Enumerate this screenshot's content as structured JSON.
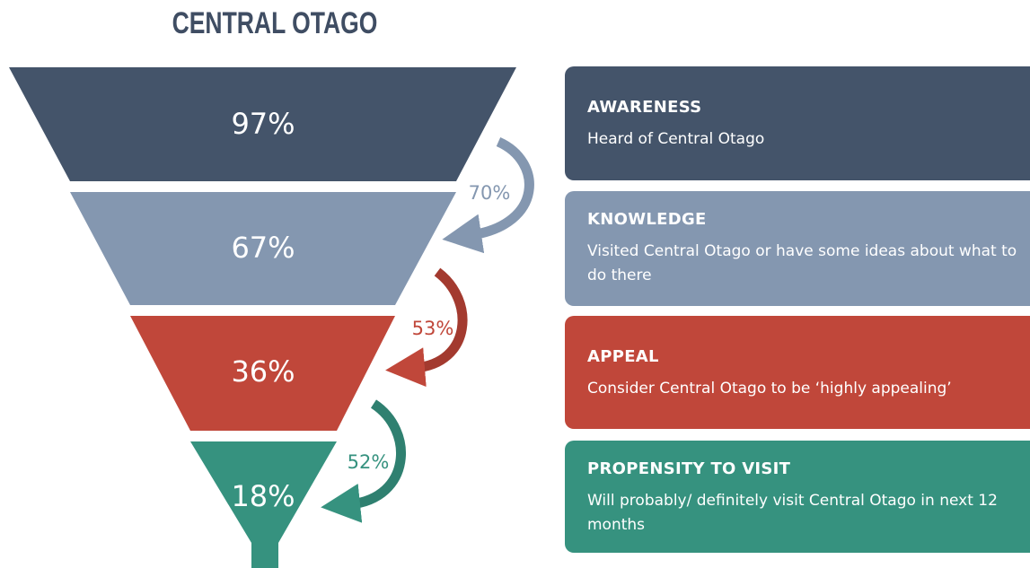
{
  "title": "CENTRAL OTAGO",
  "stages": [
    {
      "value": "97%",
      "heading": "AWARENESS",
      "description": "Heard of Central Otago"
    },
    {
      "value": "67%",
      "heading": "KNOWLEDGE",
      "description": "Visited Central Otago or have some ideas about what to do there"
    },
    {
      "value": "36%",
      "heading": "APPEAL",
      "description": "Consider Central Otago to be ‘highly appealing’"
    },
    {
      "value": "18%",
      "heading": "PROPENSITY TO VISIT",
      "description": "Will probably/ definitely visit Central Otago in next 12 months"
    }
  ],
  "conversions": [
    "70%",
    "53%",
    "52%"
  ]
}
